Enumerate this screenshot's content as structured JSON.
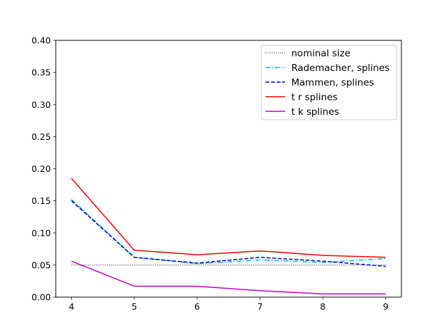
{
  "chart_data": {
    "type": "line",
    "x": [
      4,
      5,
      6,
      7,
      8,
      9
    ],
    "xlim": [
      3.75,
      9.25
    ],
    "ylim": [
      0.0,
      0.4
    ],
    "xticks": [
      4,
      5,
      6,
      7,
      8,
      9
    ],
    "yticks": [
      "0.00",
      "0.05",
      "0.10",
      "0.15",
      "0.20",
      "0.25",
      "0.30",
      "0.35",
      "0.40"
    ],
    "grid": false,
    "legend_position": "top-right",
    "series": [
      {
        "name": "nominal size",
        "color": "#000000",
        "style": "dotted",
        "values": [
          0.05,
          0.05,
          0.05,
          0.05,
          0.05,
          0.05
        ]
      },
      {
        "name": "Rademacher, splines",
        "color": "#00bfbf",
        "style": "dashdot",
        "values": [
          0.152,
          0.062,
          0.052,
          0.058,
          0.054,
          0.06
        ]
      },
      {
        "name": "Mammen, splines",
        "color": "#0000cc",
        "style": "dashed",
        "values": [
          0.15,
          0.062,
          0.053,
          0.062,
          0.056,
          0.048
        ]
      },
      {
        "name": "t r splines",
        "color": "#ee0000",
        "style": "solid",
        "values": [
          0.185,
          0.073,
          0.066,
          0.072,
          0.065,
          0.062
        ]
      },
      {
        "name": "t k splines",
        "color": "#bf00bf",
        "style": "solid",
        "values": [
          0.056,
          0.017,
          0.017,
          0.01,
          0.005,
          0.005
        ]
      }
    ]
  }
}
